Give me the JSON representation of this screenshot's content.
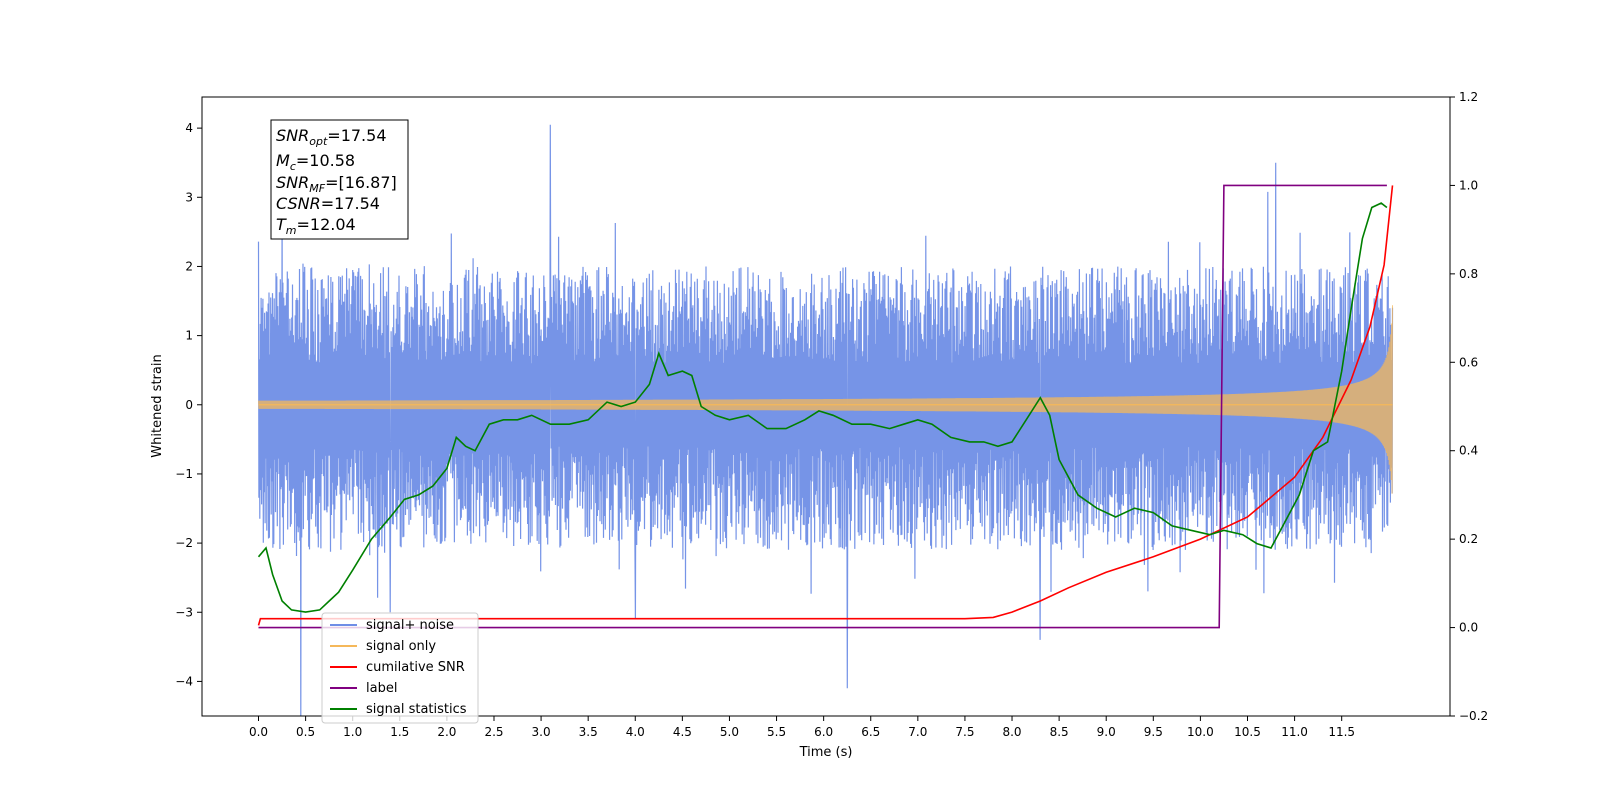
{
  "chart_data": {
    "type": "line",
    "xlabel": "Time (s)",
    "ylabel": "Whitened strain",
    "xlim": [
      -0.6,
      12.65
    ],
    "ylim": [
      -4.5,
      4.45
    ],
    "ylim_right": [
      -0.2,
      1.2
    ],
    "x_ticks": [
      "0.0",
      "0.5",
      "1.0",
      "1.5",
      "2.0",
      "2.5",
      "3.0",
      "3.5",
      "4.0",
      "4.5",
      "5.0",
      "5.5",
      "6.0",
      "6.5",
      "7.0",
      "7.5",
      "8.0",
      "8.5",
      "9.0",
      "9.5",
      "10.0",
      "10.5",
      "11.0",
      "11.5"
    ],
    "y_ticks_left": [
      "4",
      "3",
      "2",
      "1",
      "0",
      "−1",
      "−2",
      "−3",
      "−4"
    ],
    "y_ticks_right": [
      "1.2",
      "1.0",
      "0.8",
      "0.6",
      "0.4",
      "0.2",
      "0.0",
      "−0.2"
    ],
    "grid": false,
    "legend_position": "lower-left",
    "annotation": {
      "lines": [
        {
          "var": "SNR",
          "sub": "opt",
          "value": "=17.54"
        },
        {
          "var": "M",
          "sub": "c",
          "value": "=10.58"
        },
        {
          "var": "SNR",
          "sub": "MF",
          "value": "=[16.87]"
        },
        {
          "var": "CSNR",
          "sub": "",
          "value": "=17.54"
        },
        {
          "var": "T",
          "sub": "m",
          "value": "=12.04"
        }
      ]
    },
    "series": [
      {
        "name": "signal+ noise",
        "color": "#6f8ee6",
        "axis": "left",
        "description_note": "",
        "envelope_low": -2.0,
        "envelope_high": 2.0,
        "noise_std": 0.85,
        "x_range": [
          0.0,
          12.04
        ],
        "spikes": [
          [
            3.1,
            4.05
          ],
          [
            6.25,
            -4.1
          ],
          [
            10.8,
            3.5
          ],
          [
            0.25,
            2.9
          ],
          [
            8.3,
            -3.4
          ],
          [
            4.0,
            -3.1
          ],
          [
            1.4,
            -3.0
          ]
        ]
      },
      {
        "name": "signal only",
        "color": "#f5b85a",
        "axis": "left",
        "x_range": [
          0.0,
          12.04
        ],
        "final_amplitude": 1.6,
        "tc": 12.06
      },
      {
        "name": "cumilative SNR",
        "color": "#ff0000",
        "axis": "right",
        "x": [
          0.0,
          0.02,
          7.5,
          7.8,
          8.0,
          8.3,
          8.6,
          9.0,
          9.5,
          10.0,
          10.5,
          11.0,
          11.3,
          11.6,
          11.8,
          11.95,
          12.04
        ],
        "y": [
          0.005,
          0.02,
          0.02,
          0.023,
          0.035,
          0.06,
          0.09,
          0.125,
          0.16,
          0.2,
          0.25,
          0.34,
          0.43,
          0.56,
          0.68,
          0.82,
          1.0
        ]
      },
      {
        "name": "label",
        "color": "#800080",
        "axis": "right",
        "x": [
          0.0,
          10.2,
          10.25,
          11.98
        ],
        "y": [
          0.0,
          0.0,
          1.0,
          1.0
        ]
      },
      {
        "name": "signal statistics",
        "color": "#008000",
        "axis": "right",
        "x": [
          0.0,
          0.08,
          0.15,
          0.25,
          0.35,
          0.5,
          0.65,
          0.75,
          0.85,
          1.0,
          1.2,
          1.4,
          1.55,
          1.7,
          1.85,
          2.0,
          2.1,
          2.2,
          2.3,
          2.45,
          2.6,
          2.75,
          2.9,
          3.1,
          3.3,
          3.5,
          3.7,
          3.85,
          4.0,
          4.15,
          4.25,
          4.35,
          4.5,
          4.6,
          4.7,
          4.85,
          5.0,
          5.2,
          5.4,
          5.6,
          5.8,
          5.95,
          6.1,
          6.3,
          6.5,
          6.7,
          6.85,
          7.0,
          7.15,
          7.35,
          7.55,
          7.7,
          7.85,
          8.0,
          8.15,
          8.3,
          8.4,
          8.5,
          8.7,
          8.9,
          9.1,
          9.3,
          9.5,
          9.7,
          9.9,
          10.1,
          10.25,
          10.45,
          10.6,
          10.75,
          10.9,
          11.05,
          11.2,
          11.35,
          11.5,
          11.6,
          11.72,
          11.82,
          11.92,
          11.98
        ],
        "y": [
          0.16,
          0.18,
          0.12,
          0.06,
          0.04,
          0.035,
          0.04,
          0.06,
          0.08,
          0.13,
          0.2,
          0.25,
          0.29,
          0.3,
          0.32,
          0.36,
          0.43,
          0.41,
          0.4,
          0.46,
          0.47,
          0.47,
          0.48,
          0.46,
          0.46,
          0.47,
          0.51,
          0.5,
          0.51,
          0.55,
          0.62,
          0.57,
          0.58,
          0.57,
          0.5,
          0.48,
          0.47,
          0.48,
          0.45,
          0.45,
          0.47,
          0.49,
          0.48,
          0.46,
          0.46,
          0.45,
          0.46,
          0.47,
          0.46,
          0.43,
          0.42,
          0.42,
          0.41,
          0.42,
          0.47,
          0.52,
          0.48,
          0.38,
          0.3,
          0.27,
          0.25,
          0.27,
          0.26,
          0.23,
          0.22,
          0.21,
          0.22,
          0.21,
          0.19,
          0.18,
          0.24,
          0.3,
          0.4,
          0.42,
          0.58,
          0.72,
          0.88,
          0.95,
          0.96,
          0.95
        ]
      }
    ]
  }
}
